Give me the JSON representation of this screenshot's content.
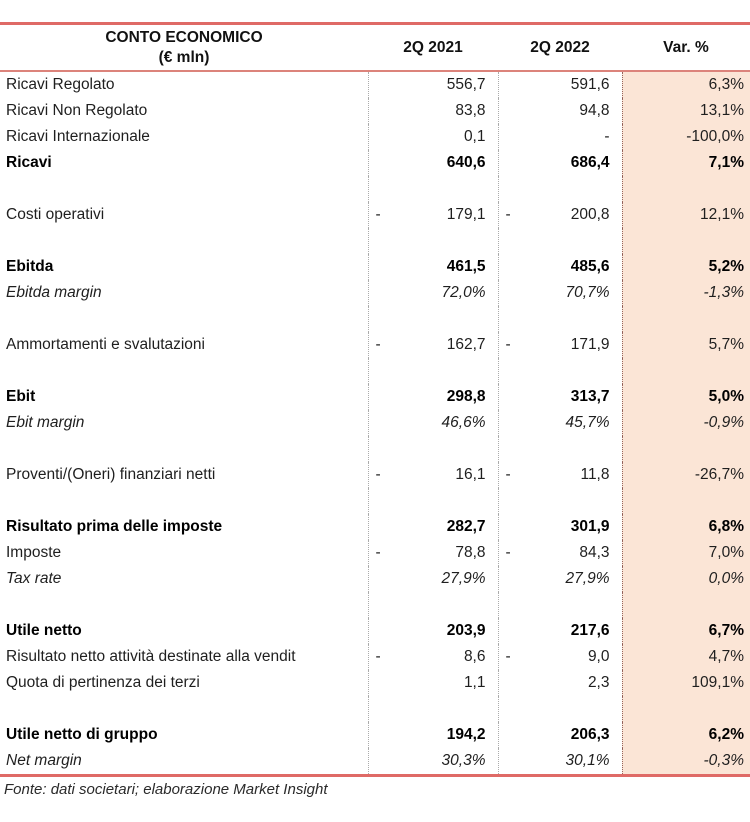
{
  "table": {
    "header": {
      "title_line1": "CONTO ECONOMICO",
      "title_line2": "(€ mln)",
      "col_q1": "2Q 2021",
      "col_q2": "2Q 2022",
      "col_var": "Var. %"
    },
    "rows": [
      {
        "label": "Ricavi Regolato",
        "q1": "556,7",
        "q2": "591,6",
        "var": "6,3%",
        "style": "normal"
      },
      {
        "label": "Ricavi Non Regolato",
        "q1": "83,8",
        "q2": "94,8",
        "var": "13,1%",
        "style": "normal"
      },
      {
        "label": "Ricavi Internazionale",
        "q1": "0,1",
        "q2": "-",
        "var": "-100,0%",
        "style": "normal"
      },
      {
        "label": "Ricavi",
        "q1": "640,6",
        "q2": "686,4",
        "var": "7,1%",
        "style": "bold"
      },
      {
        "blank": true
      },
      {
        "label": "Costi operativi",
        "q1_sign": "-",
        "q1": "179,1",
        "q2_sign": "-",
        "q2": "200,8",
        "var": "12,1%",
        "style": "normal"
      },
      {
        "blank": true
      },
      {
        "label": "Ebitda",
        "q1": "461,5",
        "q2": "485,6",
        "var": "5,2%",
        "style": "bold"
      },
      {
        "label": "Ebitda margin",
        "q1": "72,0%",
        "q2": "70,7%",
        "var": "-1,3%",
        "style": "italic"
      },
      {
        "blank": true
      },
      {
        "label": "Ammortamenti e svalutazioni",
        "q1_sign": "-",
        "q1": "162,7",
        "q2_sign": "-",
        "q2": "171,9",
        "var": "5,7%",
        "style": "normal"
      },
      {
        "blank": true
      },
      {
        "label": "Ebit",
        "q1": "298,8",
        "q2": "313,7",
        "var": "5,0%",
        "style": "bold"
      },
      {
        "label": "Ebit margin",
        "q1": "46,6%",
        "q2": "45,7%",
        "var": "-0,9%",
        "style": "italic"
      },
      {
        "blank": true
      },
      {
        "label": "Proventi/(Oneri) finanziari netti",
        "q1_sign": "-",
        "q1": "16,1",
        "q2_sign": "-",
        "q2": "11,8",
        "var": "-26,7%",
        "style": "normal"
      },
      {
        "blank": true
      },
      {
        "label": "Risultato prima delle imposte",
        "q1": "282,7",
        "q2": "301,9",
        "var": "6,8%",
        "style": "bold"
      },
      {
        "label": "Imposte",
        "q1_sign": "-",
        "q1": "78,8",
        "q2_sign": "-",
        "q2": "84,3",
        "var": "7,0%",
        "style": "normal"
      },
      {
        "label": "Tax rate",
        "q1": "27,9%",
        "q2": "27,9%",
        "var": "0,0%",
        "style": "italic"
      },
      {
        "blank": true
      },
      {
        "label": "Utile netto",
        "q1": "203,9",
        "q2": "217,6",
        "var": "6,7%",
        "style": "bold"
      },
      {
        "label": "Risultato netto attività destinate alla vendit",
        "q1_sign": "-",
        "q1": "8,6",
        "q2_sign": "-",
        "q2": "9,0",
        "var": "4,7%",
        "style": "normal"
      },
      {
        "label": "Quota di pertinenza dei terzi",
        "q1": "1,1",
        "q2": "2,3",
        "var": "109,1%",
        "style": "normal"
      },
      {
        "blank": true
      },
      {
        "label": "Utile netto di gruppo",
        "q1": "194,2",
        "q2": "206,3",
        "var": "6,2%",
        "style": "bold"
      },
      {
        "label": "Net margin",
        "q1": "30,3%",
        "q2": "30,1%",
        "var": "-0,3%",
        "style": "italic"
      }
    ]
  },
  "footer": {
    "source": "Fonte: dati societari; elaborazione Market Insight"
  },
  "colors": {
    "rule_red": "#df6a66",
    "header_rule": "#dc837b",
    "var_column_bg": "#fbe5d6",
    "dotted_gray": "#ababab",
    "dotted_maroon": "#96655d"
  }
}
